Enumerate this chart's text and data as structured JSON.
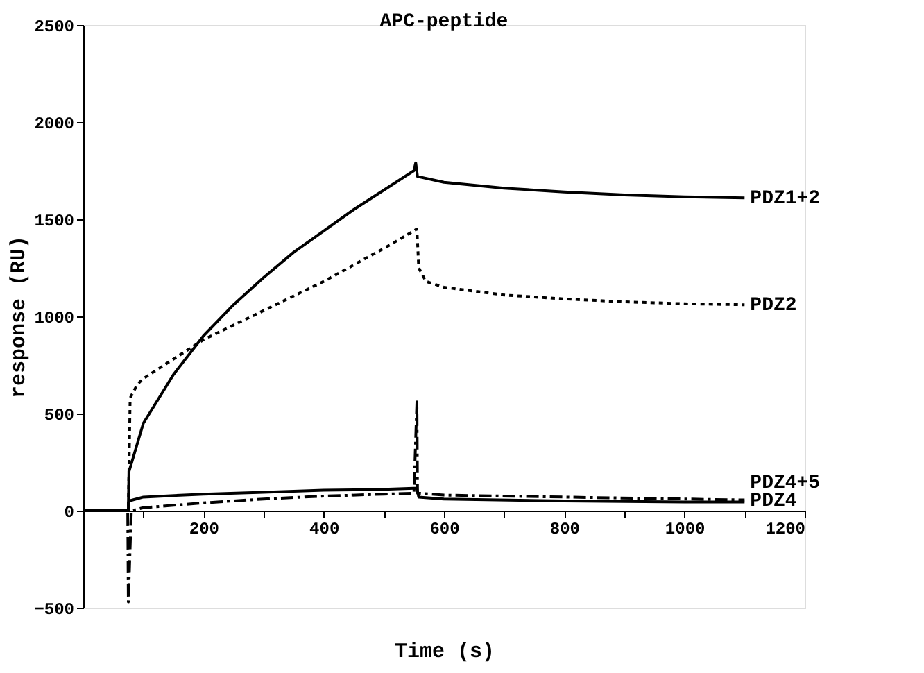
{
  "chart_data": {
    "type": "line",
    "title": "APC-peptide",
    "xlabel": "Time (s)",
    "ylabel": "response (RU)",
    "xlim": [
      0,
      1200
    ],
    "xticks": [
      {
        "value": 100,
        "label": null
      },
      200,
      {
        "value": 300,
        "label": null
      },
      400,
      {
        "value": 500,
        "label": null
      },
      600,
      {
        "value": 700,
        "label": null
      },
      800,
      {
        "value": 900,
        "label": null
      },
      1000,
      {
        "value": 1100,
        "label": null
      },
      1200
    ],
    "ylim": [
      -500,
      2500
    ],
    "yticks": [
      -500,
      0,
      500,
      1000,
      1500,
      2000,
      2500
    ],
    "grid": false,
    "legend": false,
    "marker": "none",
    "series": [
      {
        "name": "PDZ1+2",
        "color": "#000000",
        "line_style": "solid",
        "x": [
          0,
          75,
          76,
          100,
          150,
          200,
          250,
          300,
          350,
          400,
          450,
          500,
          550,
          553,
          556,
          600,
          700,
          800,
          900,
          1000,
          1100
        ],
        "values": [
          0,
          0,
          200,
          450,
          700,
          900,
          1060,
          1200,
          1330,
          1440,
          1550,
          1650,
          1750,
          1790,
          1720,
          1690,
          1660,
          1640,
          1625,
          1615,
          1610
        ]
      },
      {
        "name": "PDZ2",
        "color": "#000000",
        "line_style": "dotted",
        "x": [
          0,
          75,
          78,
          90,
          100,
          150,
          200,
          300,
          400,
          500,
          550,
          555,
          558,
          570,
          600,
          700,
          800,
          900,
          1000,
          1100
        ],
        "values": [
          0,
          0,
          580,
          650,
          680,
          780,
          880,
          1030,
          1180,
          1350,
          1440,
          1450,
          1250,
          1180,
          1150,
          1110,
          1090,
          1075,
          1065,
          1060
        ]
      },
      {
        "name": "PDZ4+5",
        "color": "#000000",
        "line_style": "solid",
        "x": [
          0,
          75,
          76,
          100,
          200,
          300,
          400,
          500,
          550,
          555,
          558,
          600,
          800,
          1000,
          1100
        ],
        "values": [
          0,
          0,
          50,
          70,
          85,
          95,
          105,
          110,
          115,
          115,
          70,
          60,
          50,
          45,
          45
        ]
      },
      {
        "name": "PDZ4",
        "color": "#000000",
        "line_style": "dashed",
        "x": [
          0,
          74,
          75,
          80,
          100,
          200,
          300,
          400,
          500,
          550,
          555,
          556,
          558,
          600,
          800,
          1000,
          1100
        ],
        "values": [
          0,
          0,
          -470,
          0,
          15,
          40,
          60,
          75,
          85,
          90,
          560,
          90,
          90,
          80,
          70,
          60,
          55
        ]
      }
    ]
  }
}
